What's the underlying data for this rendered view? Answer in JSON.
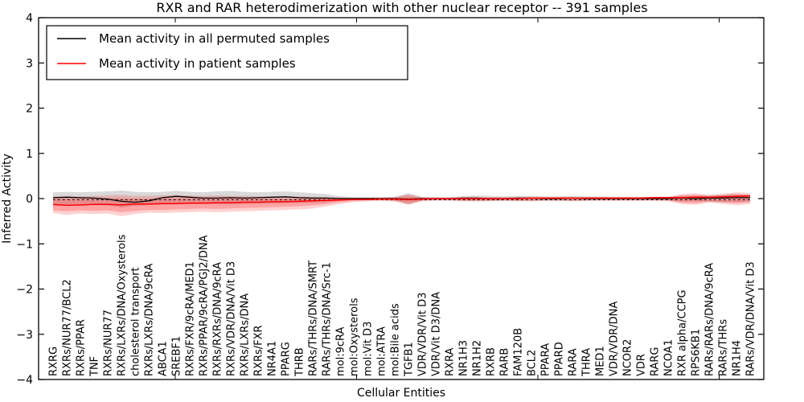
{
  "chart_data": {
    "type": "line",
    "title": "RXR and RAR heterodimerization with other nuclear receptor -- 391 samples",
    "xlabel": "Cellular Entities",
    "ylabel": "Inferred Activity",
    "ylim": [
      -4,
      4
    ],
    "grid": false,
    "legend_position": "upper-left",
    "zero_line_dashed": true,
    "yticks": [
      {
        "value": 4,
        "label": "4"
      },
      {
        "value": 3,
        "label": "3"
      },
      {
        "value": 2,
        "label": "2"
      },
      {
        "value": 1,
        "label": "1"
      },
      {
        "value": 0,
        "label": "0"
      },
      {
        "value": -1,
        "label": "−1"
      },
      {
        "value": -2,
        "label": "−2"
      },
      {
        "value": -3,
        "label": "−3"
      },
      {
        "value": -4,
        "label": "−4"
      }
    ],
    "categories": [
      "RXRG",
      "RXRs/NUR77/BCL2",
      "RXRs/PPAR",
      "TNF",
      "RXRs/NUR77",
      "RXRs/LXRs/DNA/Oxysterols",
      "cholesterol transport",
      "RXRs/LXRs/DNA/9cRA",
      "ABCA1",
      "SREBF1",
      "RXRs/FXR/9cRA/MED1",
      "RXRs/PPAR/9cRA/PGJ2/DNA",
      "RXRs/RXRs/DNA/9cRA",
      "RXRs/VDR/DNA/Vit D3",
      "RXRs/LXRs/DNA",
      "RXRs/FXR",
      "NR4A1",
      "PPARG",
      "THRB",
      "RARs/THRs/DNA/SMRT",
      "RARs/THRs/DNA/Src-1",
      "mol:9cRA",
      "mol:Oxysterols",
      "mol:Vit D3",
      "mol:ATRA",
      "mol:Bile acids",
      "TGFB1",
      "VDR/VDR/Vit D3",
      "VDR/Vit D3/DNA",
      "RXRA",
      "NR1H3",
      "NR1H2",
      "RXRB",
      "RARB",
      "FAM120B",
      "BCL2",
      "PPARA",
      "PPARD",
      "RARA",
      "THRA",
      "MED1",
      "VDR/VDR/DNA",
      "NCOR2",
      "VDR",
      "RARG",
      "NCOA1",
      "RXR alpha/CCPG",
      "RPS6KB1",
      "RARs/RARs/DNA/9cRA",
      "RARs/THRs",
      "NR1H4",
      "RARs/VDR/DNA/Vit D3"
    ],
    "series": [
      {
        "name": "Mean activity in all permuted samples",
        "color": "#000000",
        "values": [
          0.02,
          0.03,
          0.02,
          0.01,
          -0.01,
          -0.06,
          -0.08,
          -0.05,
          0.02,
          0.05,
          0.03,
          0.01,
          0.01,
          0.02,
          0.01,
          0.02,
          0.03,
          0.04,
          0.02,
          0.01,
          0.01,
          0.0,
          0.0,
          0.0,
          0.0,
          0.0,
          -0.01,
          0.0,
          0.0,
          0.0,
          0.01,
          0.01,
          0.0,
          0.0,
          0.01,
          0.01,
          0.0,
          0.0,
          0.01,
          0.0,
          0.0,
          0.0,
          0.0,
          0.0,
          0.0,
          0.0,
          0.01,
          0.0,
          0.01,
          0.01,
          0.02,
          0.02
        ]
      },
      {
        "name": "Mean activity in patient samples",
        "color": "#ff0000",
        "values": [
          -0.13,
          -0.15,
          -0.14,
          -0.13,
          -0.13,
          -0.14,
          -0.12,
          -0.12,
          -0.11,
          -0.11,
          -0.1,
          -0.1,
          -0.09,
          -0.09,
          -0.08,
          -0.08,
          -0.07,
          -0.07,
          -0.06,
          -0.05,
          -0.04,
          -0.03,
          -0.02,
          -0.02,
          -0.01,
          -0.01,
          -0.02,
          -0.01,
          0.0,
          0.0,
          0.0,
          0.0,
          0.0,
          0.0,
          0.0,
          0.01,
          0.01,
          0.01,
          0.01,
          0.01,
          0.01,
          0.01,
          0.01,
          0.01,
          0.02,
          0.02,
          0.02,
          0.03,
          0.03,
          0.04,
          0.05,
          0.06
        ]
      }
    ],
    "bands": [
      {
        "name": "permuted-std-band",
        "color": "#000000",
        "opacity": 0.15,
        "upper": [
          0.14,
          0.15,
          0.14,
          0.15,
          0.16,
          0.18,
          0.15,
          0.14,
          0.15,
          0.17,
          0.15,
          0.14,
          0.16,
          0.17,
          0.15,
          0.14,
          0.15,
          0.16,
          0.14,
          0.12,
          0.1,
          0.05,
          0.03,
          0.03,
          0.03,
          0.04,
          0.12,
          0.04,
          0.03,
          0.03,
          0.06,
          0.07,
          0.06,
          0.05,
          0.06,
          0.06,
          0.05,
          0.05,
          0.06,
          0.05,
          0.05,
          0.04,
          0.04,
          0.04,
          0.04,
          0.04,
          0.06,
          0.06,
          0.08,
          0.09,
          0.1,
          0.08
        ],
        "lower": [
          -0.12,
          -0.13,
          -0.12,
          -0.13,
          -0.15,
          -0.2,
          -0.16,
          -0.14,
          -0.13,
          -0.12,
          -0.12,
          -0.12,
          -0.13,
          -0.13,
          -0.12,
          -0.11,
          -0.11,
          -0.1,
          -0.1,
          -0.09,
          -0.08,
          -0.05,
          -0.03,
          -0.03,
          -0.03,
          -0.04,
          -0.13,
          -0.04,
          -0.03,
          -0.03,
          -0.05,
          -0.06,
          -0.05,
          -0.05,
          -0.05,
          -0.05,
          -0.05,
          -0.05,
          -0.05,
          -0.05,
          -0.04,
          -0.04,
          -0.04,
          -0.04,
          -0.04,
          -0.04,
          -0.06,
          -0.06,
          -0.07,
          -0.08,
          -0.08,
          -0.06
        ]
      },
      {
        "name": "patient-std-band-outer",
        "color": "#ff0000",
        "opacity": 0.18,
        "upper": [
          0.05,
          0.06,
          0.05,
          0.06,
          0.07,
          0.08,
          0.06,
          0.06,
          0.07,
          0.08,
          0.07,
          0.06,
          0.07,
          0.06,
          0.06,
          0.05,
          0.05,
          0.05,
          0.05,
          0.04,
          0.03,
          0.03,
          0.02,
          0.02,
          0.02,
          0.03,
          0.1,
          0.03,
          0.02,
          0.02,
          0.03,
          0.03,
          0.03,
          0.03,
          0.03,
          0.03,
          0.03,
          0.03,
          0.03,
          0.03,
          0.03,
          0.03,
          0.03,
          0.03,
          0.04,
          0.04,
          0.1,
          0.12,
          0.08,
          0.11,
          0.14,
          0.12
        ],
        "lower": [
          -0.32,
          -0.36,
          -0.33,
          -0.34,
          -0.33,
          -0.39,
          -0.34,
          -0.31,
          -0.32,
          -0.31,
          -0.3,
          -0.29,
          -0.3,
          -0.29,
          -0.28,
          -0.27,
          -0.26,
          -0.25,
          -0.24,
          -0.22,
          -0.17,
          -0.12,
          -0.08,
          -0.06,
          -0.05,
          -0.07,
          -0.14,
          -0.06,
          -0.05,
          -0.05,
          -0.06,
          -0.06,
          -0.06,
          -0.05,
          -0.06,
          -0.06,
          -0.05,
          -0.05,
          -0.06,
          -0.05,
          -0.05,
          -0.05,
          -0.05,
          -0.05,
          -0.05,
          -0.06,
          -0.12,
          -0.14,
          -0.09,
          -0.12,
          -0.15,
          -0.12
        ]
      },
      {
        "name": "patient-std-band-inner",
        "color": "#ff0000",
        "opacity": 0.22,
        "upper": [
          0.0,
          0.0,
          0.0,
          0.0,
          0.01,
          0.01,
          0.0,
          0.0,
          0.01,
          0.01,
          0.01,
          0.0,
          0.01,
          0.01,
          0.0,
          0.0,
          0.0,
          0.0,
          0.0,
          0.0,
          0.0,
          0.01,
          0.01,
          0.01,
          0.01,
          0.01,
          0.06,
          0.01,
          0.01,
          0.01,
          0.02,
          0.02,
          0.02,
          0.02,
          0.02,
          0.02,
          0.02,
          0.02,
          0.02,
          0.02,
          0.02,
          0.02,
          0.02,
          0.02,
          0.03,
          0.03,
          0.07,
          0.08,
          0.05,
          0.07,
          0.09,
          0.08
        ],
        "lower": [
          -0.26,
          -0.28,
          -0.26,
          -0.27,
          -0.26,
          -0.3,
          -0.27,
          -0.25,
          -0.25,
          -0.24,
          -0.23,
          -0.22,
          -0.23,
          -0.22,
          -0.21,
          -0.2,
          -0.19,
          -0.18,
          -0.17,
          -0.15,
          -0.12,
          -0.08,
          -0.05,
          -0.04,
          -0.03,
          -0.05,
          -0.1,
          -0.04,
          -0.03,
          -0.03,
          -0.04,
          -0.04,
          -0.04,
          -0.03,
          -0.04,
          -0.04,
          -0.03,
          -0.03,
          -0.04,
          -0.03,
          -0.03,
          -0.03,
          -0.03,
          -0.03,
          -0.03,
          -0.04,
          -0.09,
          -0.1,
          -0.06,
          -0.08,
          -0.1,
          -0.08
        ]
      }
    ],
    "legend": {
      "entries": [
        {
          "label": "Mean activity in all permuted samples",
          "color": "#000000"
        },
        {
          "label": "Mean activity in patient samples",
          "color": "#ff0000"
        }
      ]
    }
  }
}
